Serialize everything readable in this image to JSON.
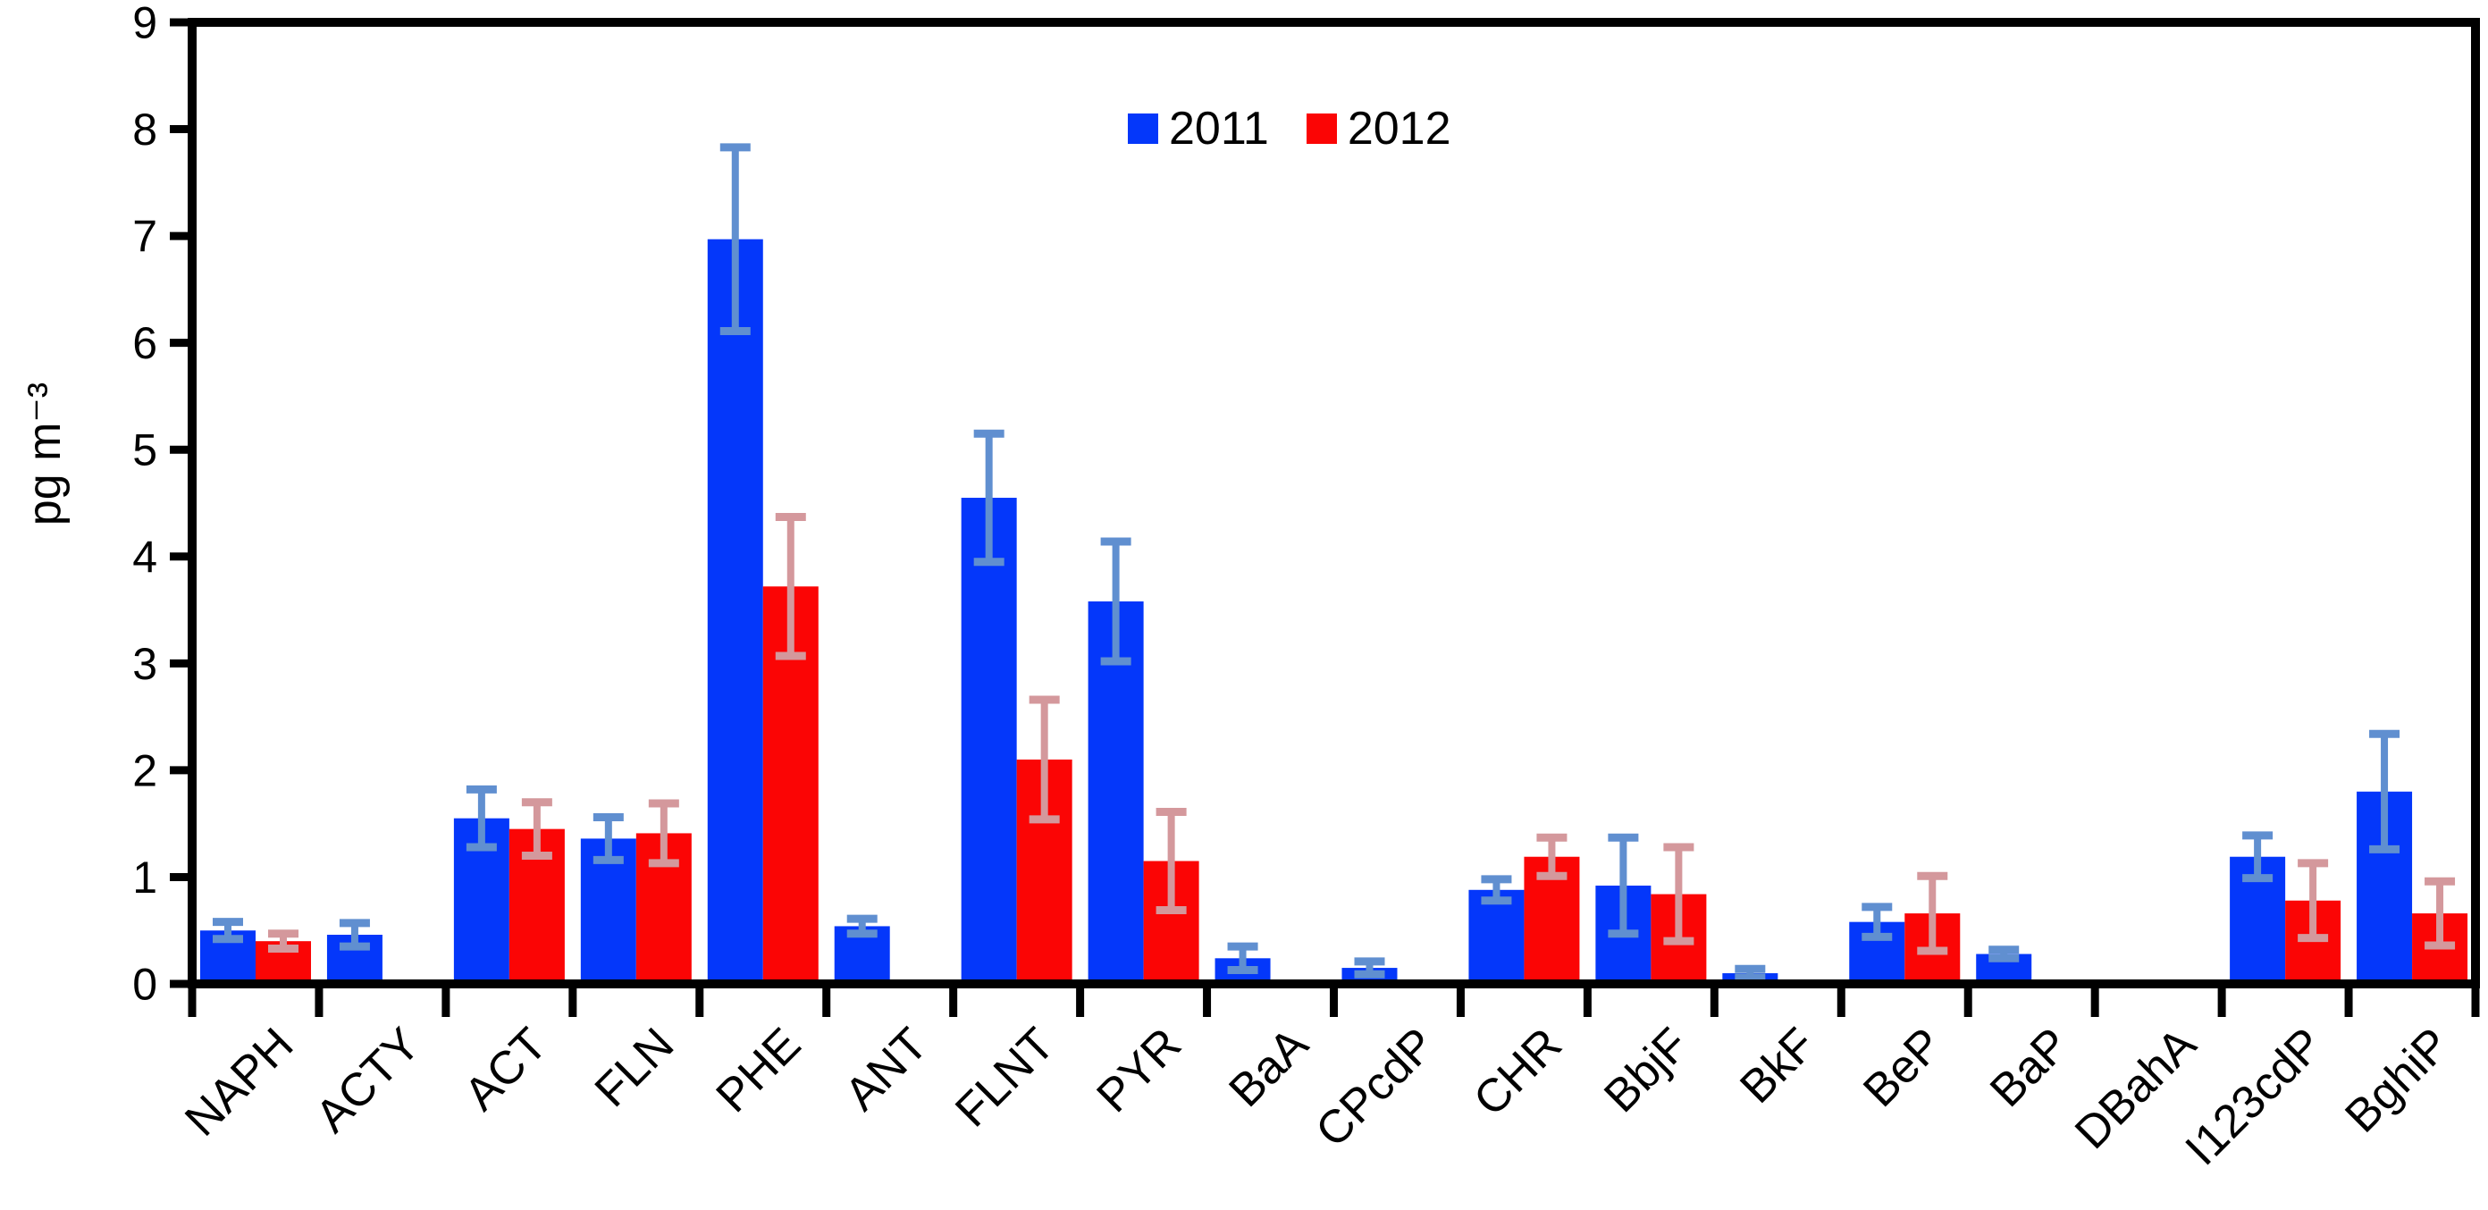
{
  "chart_data": {
    "type": "bar",
    "title": "",
    "xlabel": "",
    "ylabel": "pg m⁻³",
    "ylim": [
      0,
      9
    ],
    "yticks": [
      0,
      1,
      2,
      3,
      4,
      5,
      6,
      7,
      8,
      9
    ],
    "grid": false,
    "legend_position": "top-center",
    "categories": [
      "NAPH",
      "ACTY",
      "ACT",
      "FLN",
      "PHE",
      "ANT",
      "FLNT",
      "PYR",
      "BaA",
      "CPcdP",
      "CHR",
      "BbjF",
      "BkF",
      "BeP",
      "BaP",
      "DBahA",
      "I123cdP",
      "BghiP"
    ],
    "series": [
      {
        "name": "2011",
        "color": "#0437fa",
        "error_color": "#608fd0",
        "values": [
          0.5,
          0.46,
          1.55,
          1.36,
          6.97,
          0.54,
          4.55,
          3.58,
          0.24,
          0.15,
          0.88,
          0.92,
          0.1,
          0.58,
          0.28,
          null,
          1.19,
          1.8
        ],
        "errors": [
          0.08,
          0.11,
          0.27,
          0.2,
          0.86,
          0.07,
          0.6,
          0.56,
          0.11,
          0.06,
          0.1,
          0.45,
          0.04,
          0.14,
          0.04,
          null,
          0.2,
          0.54
        ]
      },
      {
        "name": "2012",
        "color": "#fb0505",
        "error_color": "#d4989c",
        "values": [
          0.4,
          null,
          1.45,
          1.41,
          3.72,
          null,
          2.1,
          1.15,
          null,
          null,
          1.19,
          0.84,
          null,
          0.66,
          null,
          null,
          0.78,
          0.66
        ],
        "errors": [
          0.07,
          null,
          0.25,
          0.28,
          0.65,
          null,
          0.56,
          0.46,
          null,
          null,
          0.18,
          0.44,
          null,
          0.35,
          null,
          null,
          0.35,
          0.3
        ]
      }
    ]
  }
}
